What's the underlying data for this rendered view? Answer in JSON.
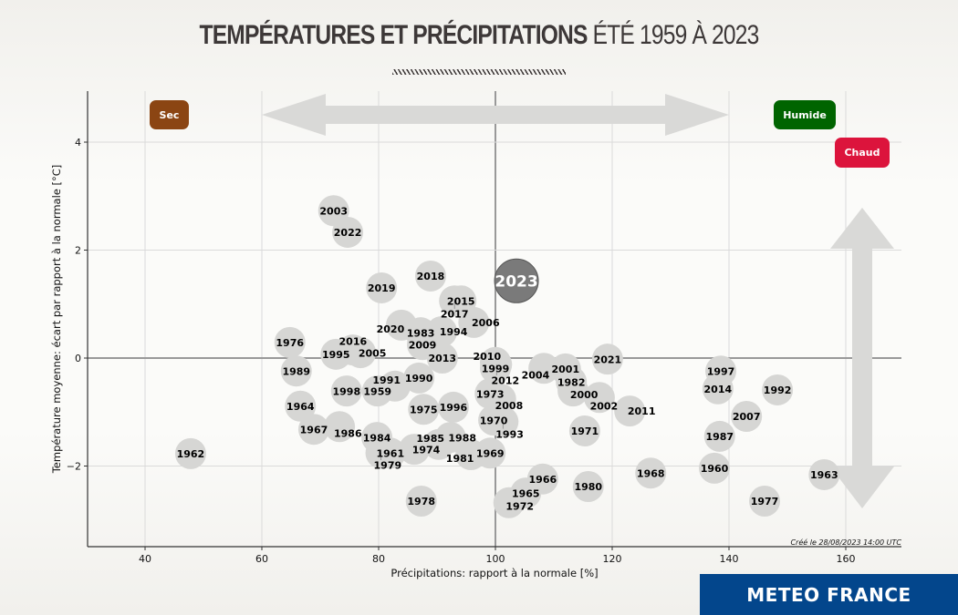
{
  "title": {
    "bold": "TEMPÉRATURES ET PRÉCIPITATIONS",
    "light": "ÉTÉ 1959 À 2023"
  },
  "brand": "METEO FRANCE",
  "created_note": "Créé le 28/08/2023 14:00 UTC",
  "badges": {
    "sec": {
      "label": "Sec",
      "color": "#8b4513"
    },
    "humide": {
      "label": "Humide",
      "color": "#006400"
    },
    "chaud": {
      "label": "Chaud",
      "color": "#dc143c"
    }
  },
  "chart_data": {
    "type": "scatter",
    "xlabel": "Précipitations: rapport à la normale [%]",
    "ylabel": "Température moyenne: écart par rapport à la normale [°C]",
    "xlim": [
      30,
      168
    ],
    "ylim": [
      -3.5,
      4.9
    ],
    "xticks": [
      "40",
      "60",
      "80",
      "100",
      "120",
      "140",
      "160"
    ],
    "yticks": [
      "4",
      "2",
      "0",
      "−2"
    ],
    "grid": true,
    "reference_lines": {
      "x": 100,
      "y": 0
    },
    "highlight": "2023",
    "colors": {
      "point": "#d6d6d4",
      "highlight": "#7a7a7a",
      "arrows": "#d9d9d7"
    },
    "points": [
      {
        "label": "1959",
        "x": 79.8,
        "y": -0.61
      },
      {
        "label": "1960",
        "x": 137.5,
        "y": -2.04
      },
      {
        "label": "1961",
        "x": 82.0,
        "y": -1.76
      },
      {
        "label": "1962",
        "x": 47.8,
        "y": -1.77
      },
      {
        "label": "1963",
        "x": 156.3,
        "y": -2.16
      },
      {
        "label": "1964",
        "x": 66.6,
        "y": -0.89
      },
      {
        "label": "1965",
        "x": 105.2,
        "y": -2.5
      },
      {
        "label": "1966",
        "x": 108.1,
        "y": -2.24
      },
      {
        "label": "1967",
        "x": 68.9,
        "y": -1.32
      },
      {
        "label": "1968",
        "x": 126.6,
        "y": -2.13
      },
      {
        "label": "1969",
        "x": 99.1,
        "y": -1.76
      },
      {
        "label": "1970",
        "x": 99.7,
        "y": -1.15
      },
      {
        "label": "1971",
        "x": 115.3,
        "y": -1.35
      },
      {
        "label": "1972",
        "x": 102.3,
        "y": -2.68
      },
      {
        "label": "1973",
        "x": 99.1,
        "y": -0.66
      },
      {
        "label": "1974",
        "x": 86.1,
        "y": -1.69
      },
      {
        "label": "1975",
        "x": 87.7,
        "y": -0.95
      },
      {
        "label": "1976",
        "x": 64.8,
        "y": 0.29
      },
      {
        "label": "1977",
        "x": 146.1,
        "y": -2.65
      },
      {
        "label": "1978",
        "x": 87.3,
        "y": -2.65
      },
      {
        "label": "1979",
        "x": 80.4,
        "y": -1.76
      },
      {
        "label": "1980",
        "x": 115.9,
        "y": -2.38
      },
      {
        "label": "1981",
        "x": 95.8,
        "y": -1.79
      },
      {
        "label": "1982",
        "x": 113.0,
        "y": -0.44
      },
      {
        "label": "1983",
        "x": 87.2,
        "y": 0.47
      },
      {
        "label": "1984",
        "x": 79.7,
        "y": -1.47
      },
      {
        "label": "1985",
        "x": 90.3,
        "y": -1.6
      },
      {
        "label": "1986",
        "x": 73.3,
        "y": -1.27
      },
      {
        "label": "1987",
        "x": 138.4,
        "y": -1.45
      },
      {
        "label": "1988",
        "x": 92.3,
        "y": -1.47
      },
      {
        "label": "1989",
        "x": 65.9,
        "y": -0.24
      },
      {
        "label": "1990",
        "x": 86.9,
        "y": -0.37
      },
      {
        "label": "1991",
        "x": 82.8,
        "y": -0.52
      },
      {
        "label": "1992",
        "x": 148.3,
        "y": -0.59
      },
      {
        "label": "1993",
        "x": 101.3,
        "y": -1.18
      },
      {
        "label": "1994",
        "x": 90.8,
        "y": 0.49
      },
      {
        "label": "1995",
        "x": 72.7,
        "y": 0.07
      },
      {
        "label": "1996",
        "x": 92.8,
        "y": -0.91
      },
      {
        "label": "1997",
        "x": 138.6,
        "y": -0.24
      },
      {
        "label": "1998",
        "x": 74.5,
        "y": -0.61
      },
      {
        "label": "1999",
        "x": 100.0,
        "y": -0.19
      },
      {
        "label": "2000",
        "x": 113.3,
        "y": -0.61
      },
      {
        "label": "2001",
        "x": 112.0,
        "y": -0.2
      },
      {
        "label": "2002",
        "x": 117.8,
        "y": -0.73
      },
      {
        "label": "2003",
        "x": 72.3,
        "y": 2.73
      },
      {
        "label": "2004",
        "x": 108.3,
        "y": -0.19
      },
      {
        "label": "2005",
        "x": 76.9,
        "y": 0.1
      },
      {
        "label": "2006",
        "x": 96.3,
        "y": 0.66
      },
      {
        "label": "2007",
        "x": 143.0,
        "y": -1.08
      },
      {
        "label": "2008",
        "x": 100.9,
        "y": -0.76
      },
      {
        "label": "2009",
        "x": 87.5,
        "y": 0.25
      },
      {
        "label": "2010",
        "x": 100.0,
        "y": -0.08
      },
      {
        "label": "2011",
        "x": 123.0,
        "y": -0.98
      },
      {
        "label": "2012",
        "x": 100.2,
        "y": -0.12
      },
      {
        "label": "2013",
        "x": 90.9,
        "y": 0.0
      },
      {
        "label": "2014",
        "x": 138.1,
        "y": -0.57
      },
      {
        "label": "2015",
        "x": 94.1,
        "y": 1.06
      },
      {
        "label": "2016",
        "x": 75.6,
        "y": 0.15
      },
      {
        "label": "2017",
        "x": 93.0,
        "y": 1.06
      },
      {
        "label": "2018",
        "x": 88.9,
        "y": 1.52
      },
      {
        "label": "2019",
        "x": 80.5,
        "y": 1.3
      },
      {
        "label": "2020",
        "x": 83.9,
        "y": 0.61
      },
      {
        "label": "2021",
        "x": 119.2,
        "y": -0.02
      },
      {
        "label": "2022",
        "x": 74.7,
        "y": 2.33
      },
      {
        "label": "2023",
        "x": 103.6,
        "y": 1.43
      }
    ]
  }
}
